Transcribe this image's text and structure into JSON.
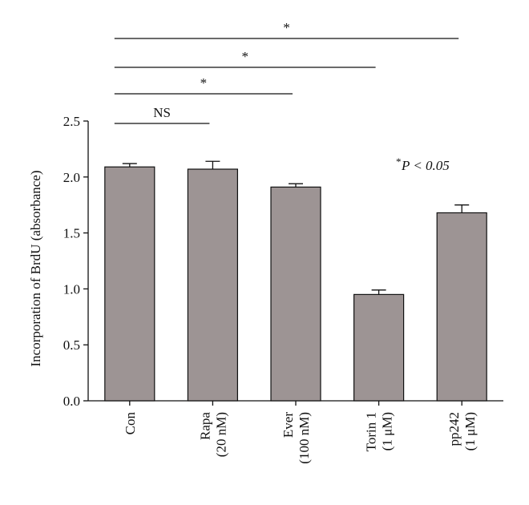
{
  "chart_data": {
    "type": "bar",
    "y_label": "Incorporation of BrdU (absorbance)",
    "categories": [
      [
        "Con"
      ],
      [
        "Rapa",
        "(20 nM)"
      ],
      [
        "Ever",
        "(100 nM)"
      ],
      [
        "Torin 1",
        "(1 μM)"
      ],
      [
        "pp242",
        "(1 μM)"
      ]
    ],
    "values": [
      2.09,
      2.07,
      1.91,
      0.95,
      1.68
    ],
    "errors": [
      0.03,
      0.07,
      0.03,
      0.04,
      0.07
    ],
    "color": "#9d9494",
    "ylim": [
      0,
      2.5
    ],
    "yticks": [
      {
        "value": 0,
        "label": "0.0"
      },
      {
        "value": 0.5,
        "label": "0.5"
      },
      {
        "value": 1,
        "label": "1.0"
      },
      {
        "value": 1.5,
        "label": "1.5"
      },
      {
        "value": 2,
        "label": "2.0"
      },
      {
        "value": 2.5,
        "label": "2.5"
      }
    ],
    "comparisons": [
      {
        "label": "NS",
        "from": 0,
        "to": 1
      },
      {
        "label": "*",
        "from": 0,
        "to": 2
      },
      {
        "label": "*",
        "from": 0,
        "to": 3
      },
      {
        "label": "*",
        "from": 0,
        "to": 4
      }
    ],
    "note_symbol": "*",
    "note_text": "P < 0.05"
  }
}
